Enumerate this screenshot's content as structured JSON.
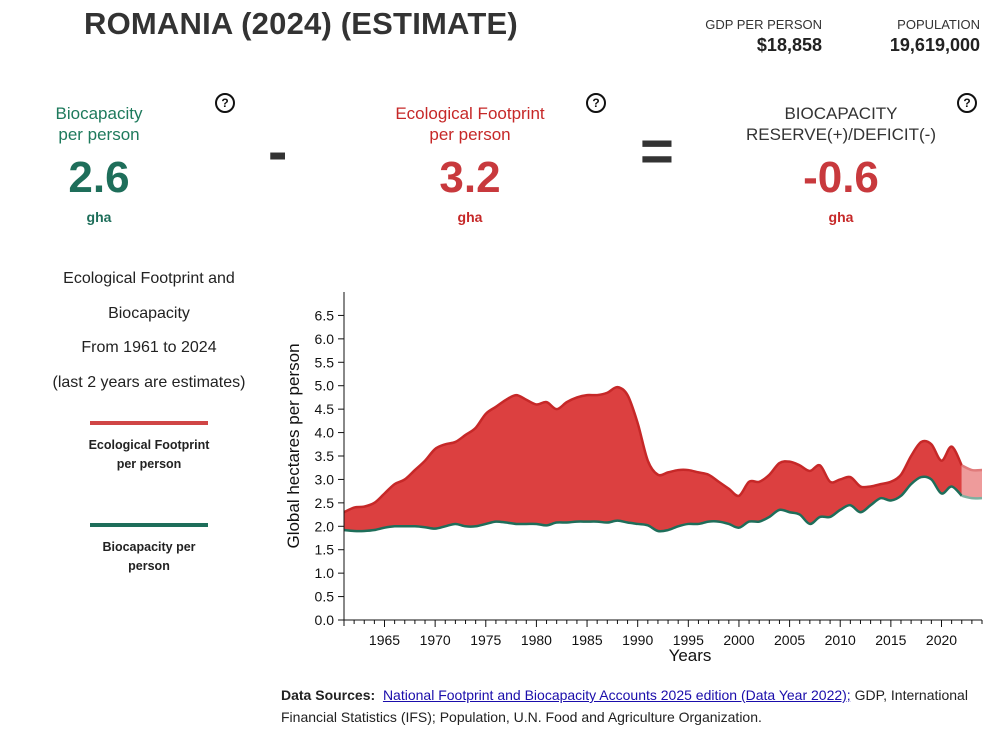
{
  "header": {
    "title": "ROMANIA (2024) (ESTIMATE)",
    "gdp_label": "GDP PER PERSON",
    "gdp_value": "$18,858",
    "population_label": "POPULATION",
    "population_value": "19,619,000"
  },
  "cards": {
    "biocapacity": {
      "label_line1": "Biocapacity",
      "label_line2": "per person",
      "value": "2.6",
      "unit": "gha"
    },
    "footprint": {
      "label_line1": "Ecological Footprint",
      "label_line2": "per person",
      "value": "3.2",
      "unit": "gha"
    },
    "reserve": {
      "label_line1": "BIOCAPACITY",
      "label_line2": "RESERVE(+)/DEFICIT(-)",
      "value": "-0.6",
      "unit": "gha"
    },
    "help_glyph": "?",
    "minus_glyph": "-",
    "equals_glyph": "="
  },
  "description": {
    "line1": "Ecological Footprint and",
    "line2": "Biocapacity",
    "line3": "From 1961 to 2024",
    "line4": "(last 2 years are estimates)"
  },
  "legend": {
    "footprint_label": "Ecological Footprint per person",
    "biocapacity_label": "Biocapacity per person"
  },
  "colors": {
    "footprint": "#c62828",
    "footprint_fill": "#dc4040",
    "biocapacity": "#1e6e5a",
    "title": "#333333"
  },
  "sources": {
    "label": "Data Sources:",
    "link_text": "National Footprint and Biocapacity Accounts 2025 edition (Data Year 2022);",
    "rest": " GDP, International Financial Statistics (IFS); Population, U.N. Food and Agriculture Organization."
  },
  "chart_data": {
    "type": "area",
    "xlabel": "Years",
    "ylabel": "Global hectares per person",
    "xlim": [
      1961,
      2024
    ],
    "ylim": [
      0,
      7
    ],
    "x_ticks": [
      1965,
      1970,
      1975,
      1980,
      1985,
      1990,
      1995,
      2000,
      2005,
      2010,
      2015,
      2020
    ],
    "y_ticks": [
      0.0,
      0.5,
      1.0,
      1.5,
      2.0,
      2.5,
      3.0,
      3.5,
      4.0,
      4.5,
      5.0,
      5.5,
      6.0,
      6.5
    ],
    "estimate_from_year": 2022,
    "x": [
      1961,
      1962,
      1963,
      1964,
      1965,
      1966,
      1967,
      1968,
      1969,
      1970,
      1971,
      1972,
      1973,
      1974,
      1975,
      1976,
      1977,
      1978,
      1979,
      1980,
      1981,
      1982,
      1983,
      1984,
      1985,
      1986,
      1987,
      1988,
      1989,
      1990,
      1991,
      1992,
      1993,
      1994,
      1995,
      1996,
      1997,
      1998,
      1999,
      2000,
      2001,
      2002,
      2003,
      2004,
      2005,
      2006,
      2007,
      2008,
      2009,
      2010,
      2011,
      2012,
      2013,
      2014,
      2015,
      2016,
      2017,
      2018,
      2019,
      2020,
      2021,
      2022,
      2023,
      2024
    ],
    "series": [
      {
        "name": "Ecological Footprint per person",
        "values": [
          2.3,
          2.4,
          2.42,
          2.5,
          2.7,
          2.9,
          3.0,
          3.2,
          3.4,
          3.65,
          3.75,
          3.8,
          3.95,
          4.1,
          4.4,
          4.55,
          4.7,
          4.8,
          4.7,
          4.6,
          4.65,
          4.5,
          4.65,
          4.75,
          4.8,
          4.8,
          4.85,
          4.97,
          4.8,
          4.2,
          3.4,
          3.1,
          3.15,
          3.2,
          3.2,
          3.15,
          3.1,
          2.95,
          2.8,
          2.65,
          2.95,
          2.95,
          3.1,
          3.35,
          3.38,
          3.3,
          3.18,
          3.3,
          2.95,
          3.0,
          3.05,
          2.85,
          2.85,
          2.9,
          2.95,
          3.1,
          3.5,
          3.8,
          3.75,
          3.4,
          3.7,
          3.3,
          3.2,
          3.2
        ]
      },
      {
        "name": "Biocapacity per person",
        "values": [
          1.92,
          1.9,
          1.9,
          1.92,
          1.97,
          2.0,
          2.0,
          2.0,
          1.98,
          1.95,
          2.0,
          2.05,
          2.0,
          2.0,
          2.05,
          2.1,
          2.08,
          2.05,
          2.05,
          2.05,
          2.02,
          2.08,
          2.08,
          2.1,
          2.1,
          2.1,
          2.08,
          2.12,
          2.08,
          2.05,
          2.02,
          1.9,
          1.92,
          2.0,
          2.05,
          2.05,
          2.1,
          2.1,
          2.05,
          1.97,
          2.1,
          2.1,
          2.2,
          2.35,
          2.3,
          2.25,
          2.05,
          2.2,
          2.2,
          2.35,
          2.45,
          2.3,
          2.45,
          2.6,
          2.55,
          2.65,
          2.9,
          3.05,
          3.0,
          2.7,
          2.85,
          2.65,
          2.6,
          2.6
        ]
      }
    ]
  }
}
